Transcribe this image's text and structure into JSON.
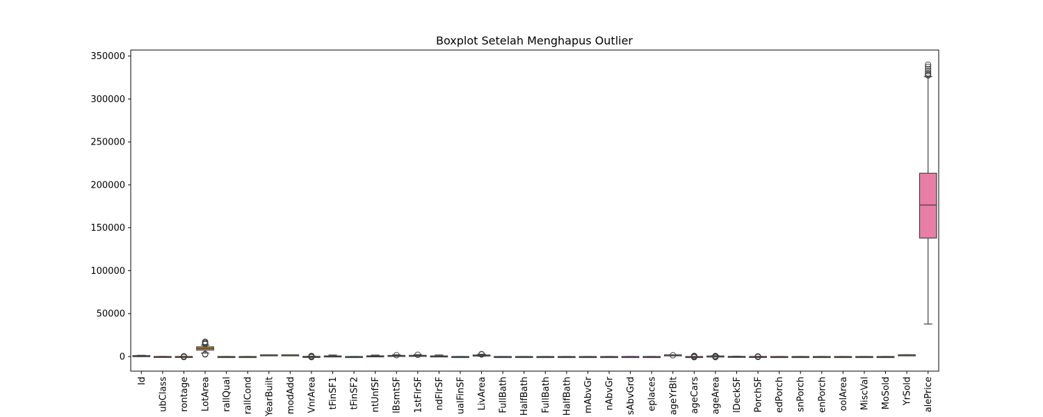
{
  "chart_data": {
    "type": "boxplot",
    "title": "Boxplot Setelah Menghapus Outlier",
    "xlabel": "",
    "ylabel": "",
    "ylim": [
      -17000,
      357000
    ],
    "yticks": [
      0,
      50000,
      100000,
      150000,
      200000,
      250000,
      300000,
      350000
    ],
    "grid": false,
    "categories": [
      "Id",
      "ubClass",
      "rontage",
      "LotArea",
      "rallQual",
      "rallCond",
      "YearBuilt",
      "modAdd",
      "VnrArea",
      "tFinSF1",
      "tFinSF2",
      "ntUnfSF",
      "lBsmtSF",
      "1stFlrSF",
      "ndFlrSF",
      "ualFinSF",
      "LivArea",
      "FullBath",
      "HalfBath",
      "FullBath",
      "HalfBath",
      "mAbvGr",
      "nAbvGr",
      "sAbvGrd",
      "eplaces",
      "ageYrBlt",
      "ageCars",
      "ageArea",
      "lDeckSF",
      "PorchSF",
      "edPorch",
      "snPorch",
      "enPorch",
      "oolArea",
      "MiscVal",
      "MoSold",
      "YrSold",
      "alePrice"
    ],
    "colors": [
      "#f77189",
      "#f7754f",
      "#e08031",
      "#ce8b31",
      "#bf9231",
      "#ae9931",
      "#9d9d31",
      "#8aa131",
      "#6fa631",
      "#3aab31",
      "#33ae60",
      "#34ad81",
      "#35ab96",
      "#36aaa5",
      "#37a9b2",
      "#38a7be",
      "#39a6cb",
      "#3ba3db",
      "#4e9af4",
      "#7e91f4",
      "#9d87f4",
      "#b17cf4",
      "#c773f4",
      "#e15ff4",
      "#f45bdf",
      "#f565c8",
      "#f56cb6",
      "#f66fa4",
      "#f77296",
      "#f77189",
      "#f7754f",
      "#e08031",
      "#ce8b31",
      "#bf9231",
      "#ae9931",
      "#9d9d31",
      "#8aa131",
      "#e87ea6"
    ],
    "boxes": [
      {
        "q1": 365,
        "median": 730,
        "q3": 1095,
        "whisker_low": 1,
        "whisker_high": 1460,
        "outliers": []
      },
      {
        "q1": 20,
        "median": 50,
        "q3": 70,
        "whisker_low": 20,
        "whisker_high": 160,
        "outliers": []
      },
      {
        "q1": 59,
        "median": 69,
        "q3": 80,
        "whisker_low": 28,
        "whisker_high": 111,
        "outliers": [
          -600,
          -300,
          0,
          150,
          300
        ]
      },
      {
        "q1": 7500,
        "median": 9400,
        "q3": 11300,
        "whisker_low": 4000,
        "whisker_high": 13300,
        "outliers": [
          2500,
          3000,
          14500,
          15400,
          16300,
          17200
        ]
      },
      {
        "q1": 5,
        "median": 6,
        "q3": 7,
        "whisker_low": 3,
        "whisker_high": 10,
        "outliers": []
      },
      {
        "q1": 5,
        "median": 5,
        "q3": 6,
        "whisker_low": 3,
        "whisker_high": 8,
        "outliers": []
      },
      {
        "q1": 1954,
        "median": 1972,
        "q3": 2000,
        "whisker_low": 1885,
        "whisker_high": 2010,
        "outliers": []
      },
      {
        "q1": 1967,
        "median": 1993,
        "q3": 2004,
        "whisker_low": 1950,
        "whisker_high": 2010,
        "outliers": []
      },
      {
        "q1": 0,
        "median": 0,
        "q3": 150,
        "whisker_low": 0,
        "whisker_high": 400,
        "outliers": [
          -700,
          -350,
          0,
          350,
          700
        ]
      },
      {
        "q1": 0,
        "median": 380,
        "q3": 710,
        "whisker_low": 0,
        "whisker_high": 1770,
        "outliers": []
      },
      {
        "q1": 0,
        "median": 0,
        "q3": 0,
        "whisker_low": 0,
        "whisker_high": 0,
        "outliers": []
      },
      {
        "q1": 220,
        "median": 480,
        "q3": 810,
        "whisker_low": 0,
        "whisker_high": 1690,
        "outliers": []
      },
      {
        "q1": 795,
        "median": 990,
        "q3": 1300,
        "whisker_low": 105,
        "whisker_high": 2050,
        "outliers": [
          1600
        ]
      },
      {
        "q1": 880,
        "median": 1080,
        "q3": 1390,
        "whisker_low": 334,
        "whisker_high": 2150,
        "outliers": [
          2000
        ]
      },
      {
        "q1": 0,
        "median": 0,
        "q3": 730,
        "whisker_low": 0,
        "whisker_high": 1820,
        "outliers": []
      },
      {
        "q1": 0,
        "median": 0,
        "q3": 0,
        "whisker_low": 0,
        "whisker_high": 0,
        "outliers": []
      },
      {
        "q1": 1130,
        "median": 1460,
        "q3": 1780,
        "whisker_low": 334,
        "whisker_high": 2730,
        "outliers": [
          2400,
          2600,
          2800
        ]
      },
      {
        "q1": 0,
        "median": 0,
        "q3": 1,
        "whisker_low": 0,
        "whisker_high": 2,
        "outliers": []
      },
      {
        "q1": 0,
        "median": 0,
        "q3": 0,
        "whisker_low": 0,
        "whisker_high": 0,
        "outliers": []
      },
      {
        "q1": 1,
        "median": 2,
        "q3": 2,
        "whisker_low": 0,
        "whisker_high": 3,
        "outliers": []
      },
      {
        "q1": 0,
        "median": 0,
        "q3": 1,
        "whisker_low": 0,
        "whisker_high": 2,
        "outliers": []
      },
      {
        "q1": 2,
        "median": 3,
        "q3": 3,
        "whisker_low": 0,
        "whisker_high": 6,
        "outliers": []
      },
      {
        "q1": 1,
        "median": 1,
        "q3": 1,
        "whisker_low": 1,
        "whisker_high": 1,
        "outliers": []
      },
      {
        "q1": 5,
        "median": 6,
        "q3": 7,
        "whisker_low": 2,
        "whisker_high": 10,
        "outliers": []
      },
      {
        "q1": 0,
        "median": 1,
        "q3": 1,
        "whisker_low": 0,
        "whisker_high": 3,
        "outliers": []
      },
      {
        "q1": 1961,
        "median": 1980,
        "q3": 2002,
        "whisker_low": 1900,
        "whisker_high": 2010,
        "outliers": [
          1500
        ]
      },
      {
        "q1": 1,
        "median": 2,
        "q3": 2,
        "whisker_low": 0,
        "whisker_high": 3,
        "outliers": [
          -800,
          -400,
          0,
          400,
          800
        ]
      },
      {
        "q1": 334,
        "median": 480,
        "q3": 576,
        "whisker_low": 0,
        "whisker_high": 938,
        "outliers": [
          -700,
          -350,
          0,
          350,
          700
        ]
      },
      {
        "q1": 0,
        "median": 0,
        "q3": 168,
        "whisker_low": 0,
        "whisker_high": 420,
        "outliers": []
      },
      {
        "q1": 0,
        "median": 25,
        "q3": 68,
        "whisker_low": 0,
        "whisker_high": 170,
        "outliers": [
          -500,
          -250,
          0,
          250
        ]
      },
      {
        "q1": 0,
        "median": 0,
        "q3": 0,
        "whisker_low": 0,
        "whisker_high": 0,
        "outliers": []
      },
      {
        "q1": 0,
        "median": 0,
        "q3": 0,
        "whisker_low": 0,
        "whisker_high": 0,
        "outliers": []
      },
      {
        "q1": 0,
        "median": 0,
        "q3": 0,
        "whisker_low": 0,
        "whisker_high": 0,
        "outliers": []
      },
      {
        "q1": 0,
        "median": 0,
        "q3": 0,
        "whisker_low": 0,
        "whisker_high": 0,
        "outliers": []
      },
      {
        "q1": 0,
        "median": 0,
        "q3": 0,
        "whisker_low": 0,
        "whisker_high": 0,
        "outliers": []
      },
      {
        "q1": 5,
        "median": 6,
        "q3": 8,
        "whisker_low": 1,
        "whisker_high": 12,
        "outliers": []
      },
      {
        "q1": 2007,
        "median": 2008,
        "q3": 2009,
        "whisker_low": 2006,
        "whisker_high": 2010,
        "outliers": []
      },
      {
        "q1": 138000,
        "median": 176500,
        "q3": 213500,
        "whisker_low": 37900,
        "whisker_high": 326000,
        "outliers": [
          327500,
          328500,
          330000,
          332500,
          335000,
          337500,
          340000
        ]
      }
    ]
  }
}
